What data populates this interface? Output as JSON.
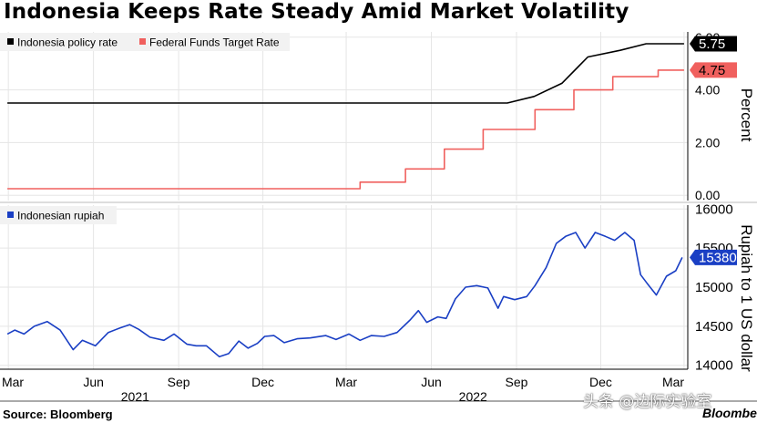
{
  "title": "Indonesia Keeps Rate Steady Amid Market Volatility",
  "source": "Source: Bloomberg",
  "brand": "Bloomberg",
  "watermark": "头条 @边际实验室",
  "colors": {
    "policy": "#000000",
    "fed": "#f0605e",
    "rupiah": "#1a3fc4",
    "grid": "#e5e5e5"
  },
  "chart_data": [
    {
      "type": "line",
      "ylabel": "Percent",
      "ylim": [
        -0.2,
        6.2
      ],
      "yticks": [
        0,
        2,
        4,
        6
      ],
      "ytick_labels": [
        "0.00",
        "2.00",
        "4.00",
        "6.00"
      ],
      "legend": "top-left",
      "series": [
        {
          "name": "Indonesia policy rate",
          "last_value": "5.75",
          "points": [
            [
              "2021-02-28",
              3.5
            ],
            [
              "2022-08-22",
              3.5
            ],
            [
              "2022-09-20",
              3.75
            ],
            [
              "2022-10-20",
              4.25
            ],
            [
              "2022-11-17",
              5.25
            ],
            [
              "2022-12-22",
              5.5
            ],
            [
              "2023-01-19",
              5.75
            ],
            [
              "2023-03-01",
              5.75
            ]
          ]
        },
        {
          "name": "Federal Funds Target Rate",
          "last_value": "4.75",
          "points": [
            [
              "2021-02-28",
              0.25
            ],
            [
              "2022-03-16",
              0.25
            ],
            [
              "2022-03-16",
              0.5
            ],
            [
              "2022-05-04",
              0.5
            ],
            [
              "2022-05-04",
              1.0
            ],
            [
              "2022-06-15",
              1.0
            ],
            [
              "2022-06-15",
              1.75
            ],
            [
              "2022-07-27",
              1.75
            ],
            [
              "2022-07-27",
              2.5
            ],
            [
              "2022-09-21",
              2.5
            ],
            [
              "2022-09-21",
              3.25
            ],
            [
              "2022-11-02",
              3.25
            ],
            [
              "2022-11-02",
              4.0
            ],
            [
              "2022-12-14",
              4.0
            ],
            [
              "2022-12-14",
              4.5
            ],
            [
              "2023-02-01",
              4.5
            ],
            [
              "2023-02-01",
              4.75
            ],
            [
              "2023-03-01",
              4.75
            ]
          ]
        }
      ]
    },
    {
      "type": "line",
      "ylabel": "Rupiah to 1 US dollar",
      "ylim": [
        13950,
        16050
      ],
      "yticks": [
        14000,
        14500,
        15000,
        15500,
        16000
      ],
      "ytick_labels": [
        "14000",
        "14500",
        "15000",
        "15500",
        "16000"
      ],
      "legend": "top-left",
      "series": [
        {
          "name": "Indonesian rupiah",
          "last_value": "15380",
          "points": [
            [
              "2021-02-28",
              14400
            ],
            [
              "2021-03-08",
              14450
            ],
            [
              "2021-03-18",
              14400
            ],
            [
              "2021-03-29",
              14500
            ],
            [
              "2021-04-12",
              14560
            ],
            [
              "2021-04-26",
              14450
            ],
            [
              "2021-05-10",
              14200
            ],
            [
              "2021-05-20",
              14320
            ],
            [
              "2021-06-03",
              14250
            ],
            [
              "2021-06-17",
              14420
            ],
            [
              "2021-06-30",
              14480
            ],
            [
              "2021-07-10",
              14520
            ],
            [
              "2021-07-20",
              14460
            ],
            [
              "2021-08-01",
              14360
            ],
            [
              "2021-08-16",
              14320
            ],
            [
              "2021-08-27",
              14400
            ],
            [
              "2021-09-10",
              14270
            ],
            [
              "2021-09-20",
              14250
            ],
            [
              "2021-10-01",
              14250
            ],
            [
              "2021-10-15",
              14110
            ],
            [
              "2021-10-25",
              14150
            ],
            [
              "2021-11-05",
              14310
            ],
            [
              "2021-11-15",
              14220
            ],
            [
              "2021-11-25",
              14280
            ],
            [
              "2021-12-03",
              14370
            ],
            [
              "2021-12-13",
              14380
            ],
            [
              "2021-12-24",
              14290
            ],
            [
              "2022-01-07",
              14340
            ],
            [
              "2022-01-21",
              14350
            ],
            [
              "2022-02-07",
              14380
            ],
            [
              "2022-02-18",
              14330
            ],
            [
              "2022-03-04",
              14400
            ],
            [
              "2022-03-16",
              14320
            ],
            [
              "2022-03-28",
              14380
            ],
            [
              "2022-04-11",
              14370
            ],
            [
              "2022-04-25",
              14420
            ],
            [
              "2022-05-09",
              14580
            ],
            [
              "2022-05-18",
              14700
            ],
            [
              "2022-05-27",
              14550
            ],
            [
              "2022-06-08",
              14620
            ],
            [
              "2022-06-17",
              14600
            ],
            [
              "2022-06-27",
              14850
            ],
            [
              "2022-07-08",
              15000
            ],
            [
              "2022-07-20",
              15020
            ],
            [
              "2022-08-01",
              14990
            ],
            [
              "2022-08-12",
              14730
            ],
            [
              "2022-08-18",
              14880
            ],
            [
              "2022-08-30",
              14840
            ],
            [
              "2022-09-12",
              14880
            ],
            [
              "2022-09-21",
              15020
            ],
            [
              "2022-10-03",
              15250
            ],
            [
              "2022-10-14",
              15560
            ],
            [
              "2022-10-24",
              15650
            ],
            [
              "2022-11-04",
              15700
            ],
            [
              "2022-11-14",
              15500
            ],
            [
              "2022-11-25",
              15700
            ],
            [
              "2022-12-06",
              15650
            ],
            [
              "2022-12-16",
              15600
            ],
            [
              "2022-12-27",
              15700
            ],
            [
              "2023-01-06",
              15600
            ],
            [
              "2023-01-13",
              15160
            ],
            [
              "2023-01-20",
              15050
            ],
            [
              "2023-01-30",
              14900
            ],
            [
              "2023-02-10",
              15140
            ],
            [
              "2023-02-20",
              15210
            ],
            [
              "2023-02-27",
              15380
            ]
          ]
        }
      ]
    }
  ],
  "x_axis": {
    "months": [
      {
        "label": "Mar",
        "date": "2021-03-01"
      },
      {
        "label": "Jun",
        "date": "2021-06-01"
      },
      {
        "label": "Sep",
        "date": "2021-09-01"
      },
      {
        "label": "Dec",
        "date": "2021-12-01"
      },
      {
        "label": "Mar",
        "date": "2022-03-01"
      },
      {
        "label": "Jun",
        "date": "2022-06-01"
      },
      {
        "label": "Sep",
        "date": "2022-09-01"
      },
      {
        "label": "Dec",
        "date": "2022-12-01"
      },
      {
        "label": "Mar",
        "date": "2023-03-01"
      }
    ],
    "years": [
      {
        "label": "2021",
        "date": "2021-07-16"
      },
      {
        "label": "2022",
        "date": "2022-07-16"
      }
    ]
  }
}
